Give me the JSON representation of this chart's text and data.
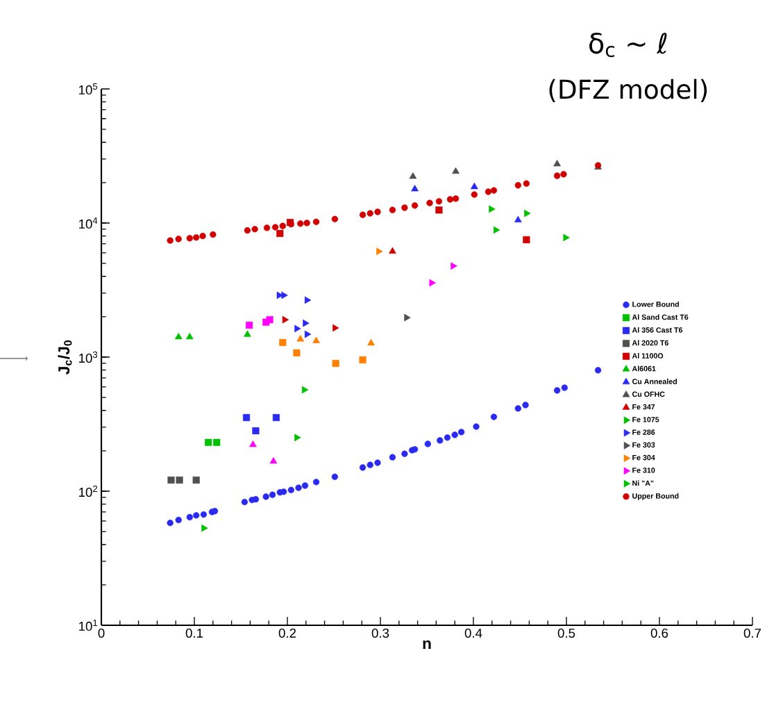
{
  "chart_data": {
    "type": "scatter",
    "xlabel": "n",
    "ylabel": "**J$_{c}$/J$_{0}$**",
    "log": "y",
    "xlim": [
      0,
      0.7
    ],
    "xticks": [
      0,
      0.1,
      0.2,
      0.3,
      0.4,
      0.5,
      0.6,
      0.7
    ],
    "ylim": [
      10,
      100000
    ],
    "yticks": [
      {
        "value": 10,
        "label": "10$^{1}$"
      },
      {
        "value": 100,
        "label": "10$^{2}$"
      },
      {
        "value": 1000,
        "label": "10$^{3}$"
      },
      {
        "value": 10000,
        "label": "10$^{4}$"
      },
      {
        "value": 100000,
        "label": "10$^{5}$"
      }
    ],
    "legend": "right",
    "grid": false,
    "annotations": [
      "δ$_{c}$ ~ ℓ",
      "(DFZ model)"
    ],
    "series": [
      {
        "name": "Lower Bound",
        "color": "#2a2af0",
        "marker": "circle",
        "x": [
          0.074,
          0.083,
          0.095,
          0.102,
          0.11,
          0.119,
          0.122,
          0.154,
          0.162,
          0.166,
          0.177,
          0.184,
          0.192,
          0.196,
          0.204,
          0.212,
          0.219,
          0.231,
          0.251,
          0.281,
          0.289,
          0.297,
          0.313,
          0.326,
          0.334,
          0.337,
          0.351,
          0.364,
          0.372,
          0.38,
          0.387,
          0.403,
          0.422,
          0.448,
          0.456,
          0.49,
          0.498,
          0.534
        ],
        "values": [
          58,
          61,
          64,
          66,
          67,
          70,
          71,
          83,
          86,
          87,
          91,
          94,
          98,
          99,
          102,
          106,
          110,
          117,
          128,
          150,
          157,
          163,
          179,
          190,
          202,
          205,
          225,
          239,
          251,
          263,
          276,
          303,
          358,
          414,
          439,
          564,
          591,
          798
        ]
      },
      {
        "name": "Al Sand Cast T6",
        "color": "#00c000",
        "marker": "square",
        "x": [
          0.115,
          0.124
        ],
        "values": [
          231,
          231
        ]
      },
      {
        "name": "Al 356 Cast T6",
        "color": "#2a2af0",
        "marker": "square",
        "x": [
          0.156,
          0.188,
          0.166
        ],
        "values": [
          354,
          354,
          282
        ]
      },
      {
        "name": "Al 2020 T6",
        "color": "#505050",
        "marker": "square",
        "x": [
          0.075,
          0.084,
          0.102
        ],
        "values": [
          121,
          121,
          121
        ]
      },
      {
        "color": "#ff8000",
        "marker": "square",
        "x": [
          0.195,
          0.21,
          0.252,
          0.281
        ],
        "values": [
          1285,
          1075,
          897,
          953
        ]
      },
      {
        "color": "#ff00ff",
        "marker": "square",
        "x": [
          0.159,
          0.177,
          0.181
        ],
        "values": [
          1730,
          1820,
          1900
        ]
      },
      {
        "name": "Al 1100O",
        "color": "#d00000",
        "marker": "square",
        "x": [
          0.192,
          0.203,
          0.363,
          0.457
        ],
        "values": [
          8360,
          10100,
          12500,
          7500
        ]
      },
      {
        "name": "Al6061",
        "color": "#00c000",
        "marker": "triangle",
        "x": [
          0.083,
          0.095,
          0.157
        ],
        "values": [
          1410,
          1410,
          1470
        ]
      },
      {
        "name": "Cu Annealed",
        "color": "#2a2af0",
        "marker": "triangle",
        "x": [
          0.337,
          0.401,
          0.448
        ],
        "values": [
          17900,
          18600,
          10500
        ]
      },
      {
        "name": "Cu OFHC",
        "color": "#505050",
        "marker": "triangle",
        "x": [
          0.335,
          0.381,
          0.49,
          0.534
        ],
        "values": [
          22200,
          24200,
          27500,
          26000
        ]
      },
      {
        "color": "#ff8000",
        "marker": "triangle",
        "x": [
          0.214,
          0.231,
          0.29
        ],
        "values": [
          1360,
          1320,
          1270
        ]
      },
      {
        "color": "#ff00ff",
        "marker": "triangle",
        "x": [
          0.163,
          0.185
        ],
        "values": [
          222,
          167
        ]
      },
      {
        "name": "Fe 347",
        "color": "#d00000",
        "marker": "triangle",
        "x": [
          0.313
        ],
        "values": [
          6140
        ]
      },
      {
        "name": "Fe 1075",
        "color": "#00c000",
        "marker": "triangle-right",
        "x": [
          0.218,
          0.419,
          0.424,
          0.457,
          0.499
        ],
        "values": [
          570,
          12700,
          8870,
          11800,
          7780
        ]
      },
      {
        "name": "Fe 286",
        "color": "#2a2af0",
        "marker": "triangle-right",
        "x": [
          0.191,
          0.196,
          0.221
        ],
        "values": [
          2890,
          2890,
          2660
        ]
      },
      {
        "name": "Fe 303",
        "color": "#505050",
        "marker": "triangle-right",
        "x": [
          0.328
        ],
        "values": [
          1970
        ]
      },
      {
        "name": "Fe 304",
        "color": "#ff8000",
        "marker": "triangle-right",
        "x": [
          0.298
        ],
        "values": [
          6140
        ]
      },
      {
        "name": "Fe 310",
        "color": "#ff00ff",
        "marker": "triangle-right",
        "x": [
          0.378,
          0.355
        ],
        "values": [
          4780,
          3580
        ]
      },
      {
        "color": "#d00000",
        "marker": "triangle-right",
        "x": [
          0.197,
          0.251
        ],
        "values": [
          1900,
          1650
        ]
      },
      {
        "name": "Ni \"A\"",
        "color": "#00c000",
        "marker": "triangle-right",
        "x": [
          0.21,
          0.11
        ],
        "values": [
          251,
          53
        ]
      },
      {
        "color": "#2a2af0",
        "marker": "triangle-right",
        "x": [
          0.21,
          0.219,
          0.221
        ],
        "values": [
          1630,
          1790,
          1480
        ]
      },
      {
        "name": "Upper Bound",
        "color": "#d00000",
        "marker": "circle",
        "x": [
          0.074,
          0.083,
          0.095,
          0.102,
          0.109,
          0.12,
          0.157,
          0.165,
          0.178,
          0.187,
          0.195,
          0.204,
          0.214,
          0.221,
          0.231,
          0.251,
          0.281,
          0.289,
          0.297,
          0.313,
          0.326,
          0.337,
          0.353,
          0.363,
          0.375,
          0.381,
          0.401,
          0.416,
          0.422,
          0.448,
          0.457,
          0.49,
          0.497,
          0.534
        ],
        "values": [
          7400,
          7600,
          7700,
          7800,
          8000,
          8200,
          8800,
          9000,
          9200,
          9300,
          9500,
          9800,
          9900,
          10000,
          10200,
          10700,
          11500,
          11800,
          12100,
          12500,
          13000,
          13500,
          14100,
          14500,
          15000,
          15200,
          16300,
          17100,
          17500,
          19100,
          19700,
          22500,
          23100,
          26900
        ]
      }
    ]
  }
}
